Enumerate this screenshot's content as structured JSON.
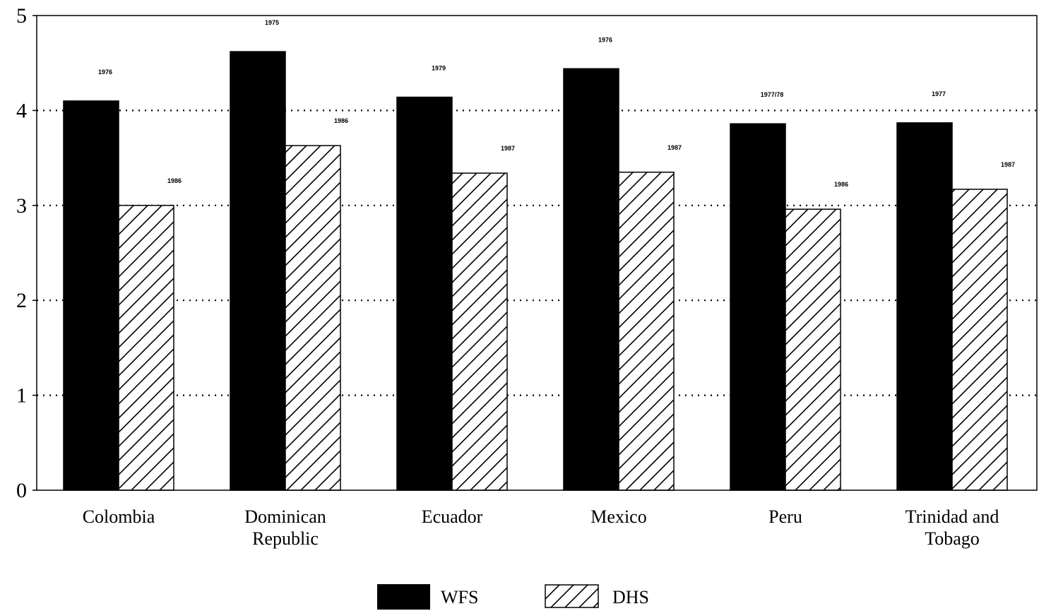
{
  "chart_data": {
    "type": "bar",
    "categories": [
      [
        "Colombia"
      ],
      [
        "Dominican",
        "Republic"
      ],
      [
        "Ecuador"
      ],
      [
        "Mexico"
      ],
      [
        "Peru"
      ],
      [
        "Trinidad and",
        "Tobago"
      ]
    ],
    "series": [
      {
        "name": "WFS",
        "values": [
          4.1,
          4.62,
          4.14,
          4.44,
          3.86,
          3.87
        ],
        "year_labels": [
          "1976",
          "1975",
          "1979",
          "1976",
          "1977/78",
          "1977"
        ],
        "color": "#000000",
        "pattern": "solid"
      },
      {
        "name": "DHS",
        "values": [
          3.0,
          3.63,
          3.34,
          3.35,
          2.96,
          3.17
        ],
        "year_labels": [
          "1986",
          "1986",
          "1987",
          "1987",
          "1986",
          "1987"
        ],
        "color": "#ffffff",
        "pattern": "diagonal-hatch"
      }
    ],
    "yticks": [
      0,
      1,
      2,
      3,
      4,
      5
    ],
    "ylim": [
      0,
      5
    ],
    "grid": "dotted horizontal",
    "legend_position": "bottom-center",
    "title": "",
    "xlabel": "",
    "ylabel": ""
  }
}
